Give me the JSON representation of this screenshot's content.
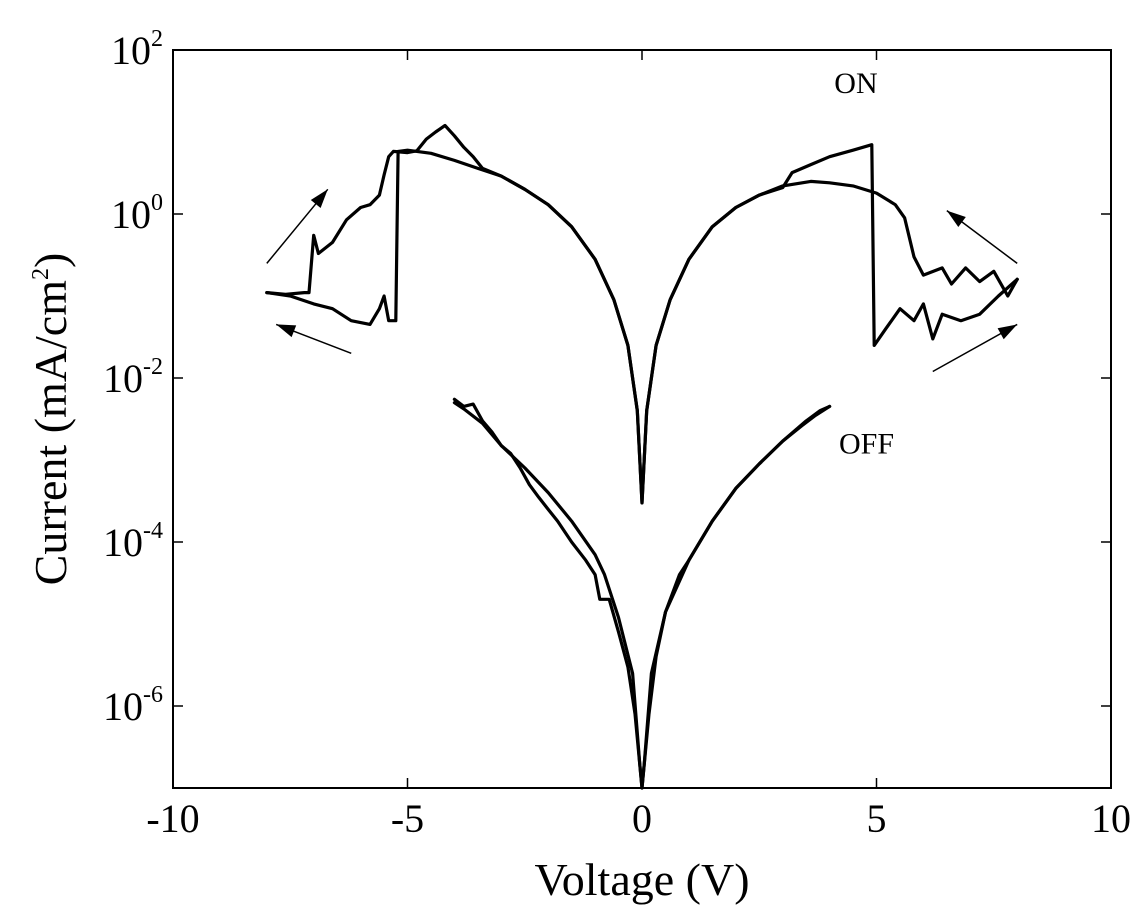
{
  "chart_data": {
    "type": "line",
    "title": "",
    "xlabel": "Voltage (V)",
    "ylabel_parts": {
      "main": "Current (mA/cm",
      "sup": "2",
      "tail": ")"
    },
    "xlim": [
      -10,
      10
    ],
    "ylim": [
      1e-07,
      100
    ],
    "y_scale": "log",
    "grid": false,
    "legend": "none",
    "x_ticks": [
      {
        "value": -10,
        "label": "-10"
      },
      {
        "value": -5,
        "label": "-5"
      },
      {
        "value": 0,
        "label": "0"
      },
      {
        "value": 5,
        "label": "5"
      },
      {
        "value": 10,
        "label": "10"
      }
    ],
    "y_ticks": [
      {
        "value": 100,
        "base": "10",
        "exp": "2"
      },
      {
        "value": 1,
        "base": "10",
        "exp": "0"
      },
      {
        "value": 0.01,
        "base": "10",
        "exp": "-2"
      },
      {
        "value": 0.0001,
        "base": "10",
        "exp": "-4"
      },
      {
        "value": 1e-06,
        "base": "10",
        "exp": "-6"
      }
    ],
    "annotations": [
      {
        "text": "ON",
        "x": 4.1,
        "y": 30
      },
      {
        "text": "OFF",
        "x": 4.2,
        "y": 0.0012
      }
    ],
    "arrows": [
      {
        "from": [
          -8.0,
          0.25
        ],
        "to": [
          -6.7,
          2.0
        ]
      },
      {
        "from": [
          -6.2,
          0.02
        ],
        "to": [
          -7.8,
          0.045
        ]
      },
      {
        "from": [
          8.0,
          0.25
        ],
        "to": [
          6.5,
          1.1
        ]
      },
      {
        "from": [
          6.2,
          0.012
        ],
        "to": [
          8.0,
          0.045
        ]
      }
    ],
    "series": [
      {
        "values": [
          [
            -8.0,
            0.11
          ],
          [
            -7.6,
            0.105
          ],
          [
            -7.2,
            0.11
          ],
          [
            -7.1,
            0.11
          ],
          [
            -7.0,
            0.55
          ],
          [
            -6.9,
            0.33
          ],
          [
            -6.6,
            0.45
          ],
          [
            -6.3,
            0.85
          ],
          [
            -6.0,
            1.2
          ],
          [
            -5.8,
            1.3
          ],
          [
            -5.6,
            1.7
          ],
          [
            -5.5,
            3.0
          ],
          [
            -5.4,
            5.0
          ],
          [
            -5.3,
            5.8
          ],
          [
            -5.0,
            5.6
          ],
          [
            -4.8,
            5.9
          ],
          [
            -4.6,
            8.2
          ],
          [
            -4.4,
            10.0
          ],
          [
            -4.2,
            12.0
          ],
          [
            -4.0,
            9.0
          ],
          [
            -3.8,
            6.5
          ],
          [
            -3.6,
            5.0
          ],
          [
            -3.4,
            3.6
          ],
          [
            -3.0,
            2.9
          ],
          [
            -2.5,
            2.0
          ],
          [
            -2.0,
            1.3
          ],
          [
            -1.5,
            0.7
          ],
          [
            -1.0,
            0.28
          ],
          [
            -0.6,
            0.09
          ],
          [
            -0.3,
            0.025
          ],
          [
            -0.1,
            0.004
          ],
          [
            0.0,
            0.0003
          ],
          [
            0.1,
            0.004
          ],
          [
            0.3,
            0.025
          ],
          [
            0.6,
            0.09
          ],
          [
            1.0,
            0.28
          ],
          [
            1.5,
            0.7
          ],
          [
            2.0,
            1.2
          ],
          [
            2.5,
            1.7
          ],
          [
            3.0,
            2.1
          ],
          [
            3.2,
            3.2
          ],
          [
            3.6,
            4.0
          ],
          [
            4.0,
            5.0
          ],
          [
            4.5,
            6.0
          ],
          [
            4.9,
            7.0
          ],
          [
            4.95,
            0.025
          ],
          [
            5.2,
            0.04
          ],
          [
            5.5,
            0.07
          ],
          [
            5.8,
            0.05
          ],
          [
            6.0,
            0.08
          ],
          [
            6.2,
            0.03
          ],
          [
            6.4,
            0.06
          ],
          [
            6.8,
            0.05
          ],
          [
            7.2,
            0.06
          ],
          [
            7.6,
            0.1
          ],
          [
            8.0,
            0.16
          ]
        ]
      },
      {
        "values": [
          [
            8.0,
            0.16
          ],
          [
            7.8,
            0.1
          ],
          [
            7.5,
            0.2
          ],
          [
            7.2,
            0.15
          ],
          [
            6.9,
            0.22
          ],
          [
            6.6,
            0.14
          ],
          [
            6.4,
            0.22
          ],
          [
            6.0,
            0.18
          ],
          [
            5.8,
            0.3
          ],
          [
            5.6,
            0.9
          ],
          [
            5.4,
            1.3
          ],
          [
            5.0,
            1.8
          ],
          [
            4.5,
            2.2
          ],
          [
            4.0,
            2.4
          ],
          [
            3.6,
            2.5
          ],
          [
            3.0,
            2.2
          ],
          [
            2.5,
            1.7
          ],
          [
            2.0,
            1.2
          ],
          [
            1.5,
            0.7
          ],
          [
            1.0,
            0.28
          ],
          [
            0.6,
            0.09
          ],
          [
            0.3,
            0.025
          ],
          [
            0.1,
            0.004
          ],
          [
            0.0,
            0.0003
          ],
          [
            -0.1,
            0.004
          ],
          [
            -0.3,
            0.025
          ],
          [
            -0.6,
            0.09
          ],
          [
            -1.0,
            0.28
          ],
          [
            -1.5,
            0.7
          ],
          [
            -2.0,
            1.3
          ],
          [
            -2.5,
            2.0
          ],
          [
            -3.0,
            2.9
          ],
          [
            -3.5,
            3.6
          ],
          [
            -4.0,
            4.5
          ],
          [
            -4.5,
            5.5
          ],
          [
            -5.0,
            6.0
          ],
          [
            -5.2,
            5.8
          ],
          [
            -5.25,
            0.05
          ],
          [
            -5.4,
            0.05
          ],
          [
            -5.5,
            0.1
          ],
          [
            -5.6,
            0.07
          ],
          [
            -5.8,
            0.045
          ],
          [
            -6.2,
            0.05
          ],
          [
            -6.6,
            0.07
          ],
          [
            -7.0,
            0.08
          ],
          [
            -7.5,
            0.1
          ],
          [
            -8.0,
            0.11
          ]
        ]
      },
      {
        "values": [
          [
            -4.0,
            0.0055
          ],
          [
            -3.8,
            0.0045
          ],
          [
            -3.6,
            0.0048
          ],
          [
            -3.4,
            0.003
          ],
          [
            -3.2,
            0.0022
          ],
          [
            -3.0,
            0.0015
          ],
          [
            -2.8,
            0.0012
          ],
          [
            -2.6,
            0.0008
          ],
          [
            -2.4,
            0.0005
          ],
          [
            -2.2,
            0.00035
          ],
          [
            -2.0,
            0.00025
          ],
          [
            -1.8,
            0.00018
          ],
          [
            -1.5,
            0.0001
          ],
          [
            -1.2,
            6e-05
          ],
          [
            -1.0,
            4e-05
          ],
          [
            -0.9,
            2e-05
          ],
          [
            -0.7,
            2e-05
          ],
          [
            -0.5,
            8e-06
          ],
          [
            -0.3,
            3e-06
          ],
          [
            -0.15,
            8e-07
          ],
          [
            0.0,
            1e-07
          ],
          [
            0.15,
            8e-07
          ],
          [
            0.3,
            4e-06
          ],
          [
            0.5,
            1.4e-05
          ],
          [
            0.8,
            4e-05
          ],
          [
            1.0,
            6e-05
          ],
          [
            1.5,
            0.00018
          ],
          [
            2.0,
            0.00045
          ],
          [
            2.5,
            0.0009
          ],
          [
            3.0,
            0.0017
          ],
          [
            3.5,
            0.003
          ],
          [
            3.8,
            0.004
          ],
          [
            4.0,
            0.0045
          ]
        ]
      },
      {
        "values": [
          [
            4.0,
            0.0045
          ],
          [
            3.7,
            0.0035
          ],
          [
            3.4,
            0.0026
          ],
          [
            3.0,
            0.0017
          ],
          [
            2.5,
            0.0009
          ],
          [
            2.0,
            0.00045
          ],
          [
            1.5,
            0.00018
          ],
          [
            1.0,
            6e-05
          ],
          [
            0.5,
            1.4e-05
          ],
          [
            0.2,
            2.5e-06
          ],
          [
            0.05,
            2e-07
          ],
          [
            0.0,
            1e-07
          ],
          [
            -0.05,
            2e-07
          ],
          [
            -0.2,
            2.5e-06
          ],
          [
            -0.5,
            1.2e-05
          ],
          [
            -0.8,
            4e-05
          ],
          [
            -1.0,
            7e-05
          ],
          [
            -1.5,
            0.00018
          ],
          [
            -2.0,
            0.0004
          ],
          [
            -2.5,
            0.0008
          ],
          [
            -3.0,
            0.0015
          ],
          [
            -3.4,
            0.0028
          ],
          [
            -3.8,
            0.0042
          ],
          [
            -4.0,
            0.005
          ]
        ]
      }
    ]
  }
}
